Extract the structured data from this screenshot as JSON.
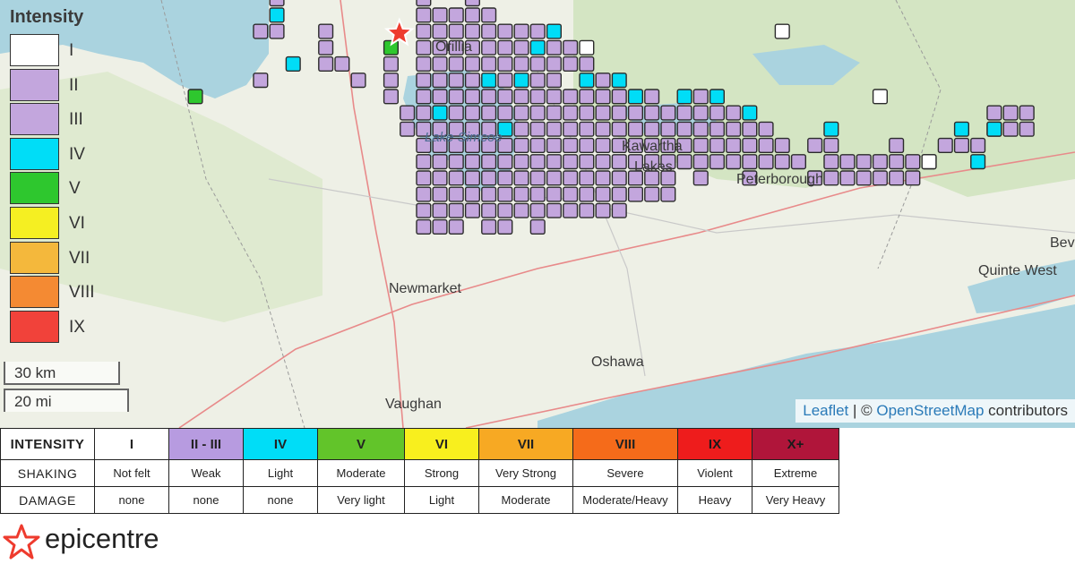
{
  "map": {
    "lake_label": "Lake Simcoe",
    "city_labels": [
      "Kawartha",
      "Lakes",
      "Peterborough",
      "Newmarket",
      "Oshawa",
      "Vaughan",
      "Quinte West",
      "Bev",
      "Orillia"
    ],
    "grid_cell_size": 18.2,
    "grid_origin": [
      9,
      0
    ],
    "cells": {
      "II": [
        [
          15,
          1
        ],
        [
          15,
          4
        ],
        [
          16,
          -1
        ],
        [
          16,
          1
        ],
        [
          19,
          1
        ],
        [
          19,
          2
        ],
        [
          19,
          3
        ],
        [
          20,
          3
        ],
        [
          21,
          4
        ],
        [
          23,
          3
        ],
        [
          23,
          4
        ],
        [
          23,
          5
        ],
        [
          24,
          6
        ],
        [
          24,
          7
        ],
        [
          25,
          -1
        ],
        [
          25,
          0
        ],
        [
          25,
          1
        ],
        [
          25,
          2
        ],
        [
          25,
          3
        ],
        [
          25,
          4
        ],
        [
          25,
          5
        ],
        [
          25,
          6
        ],
        [
          25,
          7
        ],
        [
          25,
          8
        ],
        [
          25,
          9
        ],
        [
          25,
          10
        ],
        [
          25,
          11
        ],
        [
          25,
          12
        ],
        [
          25,
          13
        ],
        [
          26,
          0
        ],
        [
          26,
          1
        ],
        [
          26,
          2
        ],
        [
          26,
          3
        ],
        [
          26,
          4
        ],
        [
          26,
          5
        ],
        [
          26,
          7
        ],
        [
          26,
          8
        ],
        [
          26,
          9
        ],
        [
          26,
          10
        ],
        [
          26,
          11
        ],
        [
          26,
          12
        ],
        [
          26,
          13
        ],
        [
          27,
          0
        ],
        [
          27,
          1
        ],
        [
          27,
          2
        ],
        [
          27,
          3
        ],
        [
          27,
          4
        ],
        [
          27,
          5
        ],
        [
          27,
          6
        ],
        [
          27,
          7
        ],
        [
          27,
          8
        ],
        [
          27,
          9
        ],
        [
          27,
          10
        ],
        [
          27,
          11
        ],
        [
          27,
          12
        ],
        [
          27,
          13
        ],
        [
          28,
          -1
        ],
        [
          28,
          0
        ],
        [
          28,
          1
        ],
        [
          28,
          2
        ],
        [
          28,
          3
        ],
        [
          28,
          4
        ],
        [
          28,
          5
        ],
        [
          28,
          6
        ],
        [
          28,
          7
        ],
        [
          28,
          8
        ],
        [
          28,
          9
        ],
        [
          28,
          10
        ],
        [
          28,
          11
        ],
        [
          28,
          12
        ],
        [
          29,
          0
        ],
        [
          29,
          1
        ],
        [
          29,
          2
        ],
        [
          29,
          3
        ],
        [
          29,
          5
        ],
        [
          29,
          6
        ],
        [
          29,
          7
        ],
        [
          29,
          8
        ],
        [
          29,
          9
        ],
        [
          29,
          10
        ],
        [
          29,
          11
        ],
        [
          29,
          12
        ],
        [
          29,
          13
        ],
        [
          30,
          1
        ],
        [
          30,
          2
        ],
        [
          30,
          3
        ],
        [
          30,
          4
        ],
        [
          30,
          5
        ],
        [
          30,
          6
        ],
        [
          30,
          8
        ],
        [
          30,
          9
        ],
        [
          30,
          10
        ],
        [
          30,
          11
        ],
        [
          30,
          12
        ],
        [
          30,
          13
        ],
        [
          31,
          1
        ],
        [
          31,
          2
        ],
        [
          31,
          3
        ],
        [
          31,
          5
        ],
        [
          31,
          6
        ],
        [
          31,
          7
        ],
        [
          31,
          8
        ],
        [
          31,
          9
        ],
        [
          31,
          10
        ],
        [
          31,
          11
        ],
        [
          31,
          12
        ],
        [
          32,
          1
        ],
        [
          32,
          3
        ],
        [
          32,
          4
        ],
        [
          32,
          5
        ],
        [
          32,
          6
        ],
        [
          32,
          7
        ],
        [
          32,
          8
        ],
        [
          32,
          9
        ],
        [
          32,
          10
        ],
        [
          32,
          11
        ],
        [
          32,
          12
        ],
        [
          32,
          13
        ],
        [
          33,
          2
        ],
        [
          33,
          3
        ],
        [
          33,
          4
        ],
        [
          33,
          5
        ],
        [
          33,
          6
        ],
        [
          33,
          7
        ],
        [
          33,
          8
        ],
        [
          33,
          9
        ],
        [
          33,
          10
        ],
        [
          33,
          11
        ],
        [
          33,
          12
        ],
        [
          34,
          2
        ],
        [
          34,
          3
        ],
        [
          34,
          5
        ],
        [
          34,
          6
        ],
        [
          34,
          7
        ],
        [
          34,
          8
        ],
        [
          34,
          9
        ],
        [
          34,
          10
        ],
        [
          34,
          11
        ],
        [
          34,
          12
        ],
        [
          35,
          3
        ],
        [
          35,
          5
        ],
        [
          35,
          6
        ],
        [
          35,
          7
        ],
        [
          35,
          8
        ],
        [
          35,
          9
        ],
        [
          35,
          10
        ],
        [
          35,
          11
        ],
        [
          35,
          12
        ],
        [
          36,
          4
        ],
        [
          36,
          5
        ],
        [
          36,
          6
        ],
        [
          36,
          7
        ],
        [
          36,
          8
        ],
        [
          36,
          9
        ],
        [
          36,
          10
        ],
        [
          36,
          11
        ],
        [
          36,
          12
        ],
        [
          37,
          5
        ],
        [
          37,
          6
        ],
        [
          37,
          7
        ],
        [
          37,
          8
        ],
        [
          37,
          9
        ],
        [
          37,
          10
        ],
        [
          37,
          11
        ],
        [
          37,
          12
        ],
        [
          38,
          6
        ],
        [
          38,
          7
        ],
        [
          38,
          8
        ],
        [
          38,
          9
        ],
        [
          38,
          10
        ],
        [
          38,
          11
        ],
        [
          39,
          5
        ],
        [
          39,
          6
        ],
        [
          39,
          7
        ],
        [
          39,
          8
        ],
        [
          39,
          9
        ],
        [
          39,
          10
        ],
        [
          39,
          11
        ],
        [
          40,
          6
        ],
        [
          40,
          7
        ],
        [
          40,
          8
        ],
        [
          40,
          9
        ],
        [
          40,
          10
        ],
        [
          40,
          11
        ],
        [
          41,
          6
        ],
        [
          41,
          7
        ],
        [
          41,
          8
        ],
        [
          41,
          9
        ],
        [
          42,
          5
        ],
        [
          42,
          6
        ],
        [
          42,
          7
        ],
        [
          42,
          8
        ],
        [
          42,
          9
        ],
        [
          42,
          10
        ],
        [
          43,
          6
        ],
        [
          43,
          7
        ],
        [
          43,
          8
        ],
        [
          43,
          9
        ],
        [
          44,
          6
        ],
        [
          44,
          7
        ],
        [
          44,
          8
        ],
        [
          44,
          9
        ],
        [
          45,
          7
        ],
        [
          45,
          8
        ],
        [
          45,
          9
        ],
        [
          45,
          10
        ],
        [
          46,
          7
        ],
        [
          46,
          8
        ],
        [
          46,
          9
        ],
        [
          47,
          8
        ],
        [
          47,
          9
        ],
        [
          48,
          9
        ],
        [
          49,
          8
        ],
        [
          49,
          10
        ],
        [
          50,
          8
        ],
        [
          50,
          9
        ],
        [
          50,
          10
        ],
        [
          51,
          9
        ],
        [
          51,
          10
        ],
        [
          52,
          9
        ],
        [
          52,
          10
        ],
        [
          53,
          9
        ],
        [
          53,
          10
        ],
        [
          54,
          8
        ],
        [
          54,
          9
        ],
        [
          54,
          10
        ],
        [
          55,
          9
        ],
        [
          55,
          10
        ],
        [
          56,
          9
        ],
        [
          57,
          8
        ],
        [
          58,
          8
        ],
        [
          59,
          8
        ],
        [
          60,
          6
        ],
        [
          60,
          7
        ],
        [
          61,
          6
        ],
        [
          61,
          7
        ],
        [
          62,
          6
        ],
        [
          62,
          7
        ]
      ],
      "III": [],
      "IV": [
        [
          16,
          0
        ],
        [
          17,
          3
        ],
        [
          26,
          6
        ],
        [
          29,
          4
        ],
        [
          30,
          7
        ],
        [
          31,
          4
        ],
        [
          32,
          2
        ],
        [
          33,
          1
        ],
        [
          35,
          4
        ],
        [
          37,
          4
        ],
        [
          38,
          5
        ],
        [
          41,
          5
        ],
        [
          43,
          5
        ],
        [
          45,
          6
        ],
        [
          50,
          7
        ],
        [
          58,
          7
        ],
        [
          59,
          9
        ],
        [
          60,
          7
        ]
      ],
      "V": [
        [
          11,
          5
        ],
        [
          23,
          2
        ]
      ],
      "I": [
        [
          35,
          2
        ],
        [
          47,
          1
        ],
        [
          53,
          5
        ],
        [
          56,
          9
        ]
      ]
    }
  },
  "epicentre_marker": {
    "col": 23,
    "row": 1
  },
  "legend": {
    "title": "Intensity",
    "levels": [
      {
        "label": "I",
        "color": "#ffffff"
      },
      {
        "label": "II",
        "color": "#c3a6dd"
      },
      {
        "label": "III",
        "color": "#c3a6dd"
      },
      {
        "label": "IV",
        "color": "#00ddf7"
      },
      {
        "label": "V",
        "color": "#2ec72e"
      },
      {
        "label": "VI",
        "color": "#f5ef22"
      },
      {
        "label": "VII",
        "color": "#f4b83c"
      },
      {
        "label": "VIII",
        "color": "#f48a33"
      },
      {
        "label": "IX",
        "color": "#f1423a"
      }
    ]
  },
  "scale": {
    "km_label": "30 km",
    "mi_label": "20 mi"
  },
  "attribution": {
    "leaflet": "Leaflet",
    "separator": "| ©",
    "osm": "OpenStreetMap",
    "suffix": "contributors"
  },
  "intensity_table": {
    "row_labels": [
      "INTENSITY",
      "SHAKING",
      "DAMAGE"
    ],
    "columns": [
      {
        "intensity": "I",
        "shaking": "Not felt",
        "damage": "none",
        "color": "#ffffff"
      },
      {
        "intensity": "II - III",
        "shaking": "Weak",
        "damage": "none",
        "color": "#b79be0"
      },
      {
        "intensity": "IV",
        "shaking": "Light",
        "damage": "none",
        "color": "#00ddf7"
      },
      {
        "intensity": "V",
        "shaking": "Moderate",
        "damage": "Very light",
        "color": "#62c42a"
      },
      {
        "intensity": "VI",
        "shaking": "Strong",
        "damage": "Light",
        "color": "#f8ef1e"
      },
      {
        "intensity": "VII",
        "shaking": "Very Strong",
        "damage": "Moderate",
        "color": "#f7a923"
      },
      {
        "intensity": "VIII",
        "shaking": "Severe",
        "damage": "Moderate/Heavy",
        "color": "#f56b1a"
      },
      {
        "intensity": "IX",
        "shaking": "Violent",
        "damage": "Heavy",
        "color": "#ee1c1c"
      },
      {
        "intensity": "X+",
        "shaking": "Extreme",
        "damage": "Very Heavy",
        "color": "#b0153a"
      }
    ]
  },
  "epicentre_legend": {
    "label": "epicentre",
    "icon": "star-icon",
    "star_color": "#ee3b2e"
  }
}
